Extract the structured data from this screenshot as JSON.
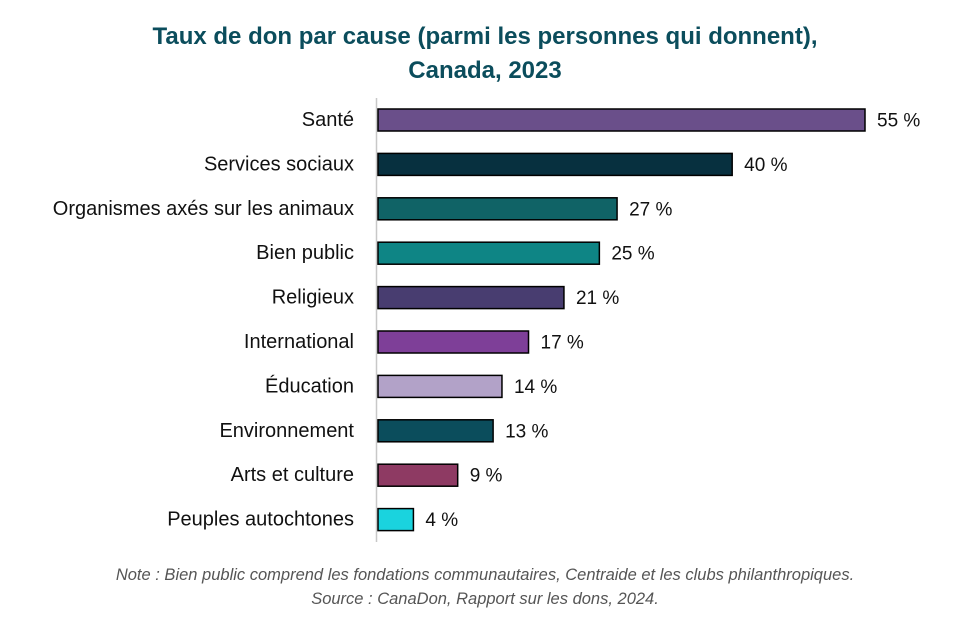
{
  "chart_data": {
    "type": "bar",
    "orientation": "horizontal",
    "title": "Taux de don par cause (parmi les personnes qui donnent),",
    "subtitle": "Canada, 2023",
    "categories": [
      "Santé",
      "Services sociaux",
      "Organismes axés sur les animaux",
      "Bien public",
      "Religieux",
      "International",
      "Éducation",
      "Environnement",
      "Arts et culture",
      "Peuples autochtones"
    ],
    "values": [
      55,
      40,
      27,
      25,
      21,
      17,
      14,
      13,
      9,
      4
    ],
    "value_labels": [
      "55 %",
      "40 %",
      "27 %",
      "25 %",
      "21 %",
      "17 %",
      "14 %",
      "13 %",
      "9 %",
      "4 %"
    ],
    "colors": [
      "#6a4f8a",
      "#07303f",
      "#106366",
      "#0e8585",
      "#483d70",
      "#7e3f98",
      "#b2a2c8",
      "#0b4d5c",
      "#8e3a63",
      "#1ad3de"
    ],
    "xlim": [
      0,
      55
    ],
    "xlabel": "",
    "ylabel": "",
    "grid": false
  },
  "notes": {
    "note": "Note : Bien public comprend les fondations communautaires, Centraide et les clubs philanthropiques.",
    "source": "Source : CanaDon, Rapport sur les dons, 2024."
  }
}
